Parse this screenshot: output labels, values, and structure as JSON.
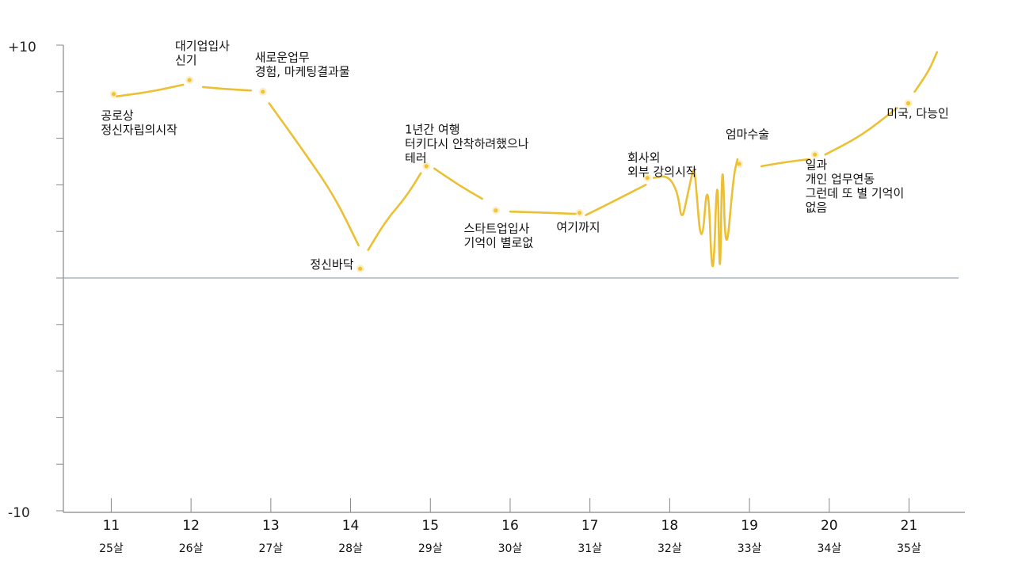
{
  "chart_data": {
    "type": "line",
    "title": "",
    "xlabel": "",
    "ylabel": "",
    "ylim": [
      -10,
      10
    ],
    "y_top_label": "+10",
    "y_bottom_label": "-10",
    "xlim": [
      10.4,
      21.7
    ],
    "x_ticks": [
      {
        "value": 11,
        "label": "11",
        "age": "25살"
      },
      {
        "value": 12,
        "label": "12",
        "age": "26살"
      },
      {
        "value": 13,
        "label": "13",
        "age": "27살"
      },
      {
        "value": 14,
        "label": "14",
        "age": "28살"
      },
      {
        "value": 15,
        "label": "15",
        "age": "29살"
      },
      {
        "value": 16,
        "label": "16",
        "age": "30살"
      },
      {
        "value": 17,
        "label": "17",
        "age": "31살"
      },
      {
        "value": 18,
        "label": "18",
        "age": "32살"
      },
      {
        "value": 19,
        "label": "19",
        "age": "33살"
      },
      {
        "value": 20,
        "label": "20",
        "age": "34살"
      },
      {
        "value": 21,
        "label": "21",
        "age": "35살"
      }
    ],
    "line_color": "#EBC034",
    "point_color": "#F4C430",
    "axis_color": "#888888",
    "zero_line_color": "#9AA5B4",
    "points": [
      {
        "x": 11.03,
        "y": 7.9
      },
      {
        "x": 11.98,
        "y": 8.5
      },
      {
        "x": 12.9,
        "y": 8.0
      },
      {
        "x": 14.12,
        "y": 0.4
      },
      {
        "x": 14.95,
        "y": 4.8
      },
      {
        "x": 15.82,
        "y": 2.9
      },
      {
        "x": 16.87,
        "y": 2.8
      },
      {
        "x": 17.72,
        "y": 4.3
      },
      {
        "x": 18.87,
        "y": 4.9
      },
      {
        "x": 19.82,
        "y": 5.3
      },
      {
        "x": 20.99,
        "y": 7.5
      }
    ],
    "segments": [
      [
        [
          11.07,
          7.8
        ],
        [
          11.5,
          8.0
        ],
        [
          11.9,
          8.3
        ]
      ],
      [
        [
          12.15,
          8.2
        ],
        [
          12.5,
          8.1
        ],
        [
          12.75,
          8.05
        ]
      ],
      [
        [
          12.98,
          7.5
        ],
        [
          13.4,
          5.5
        ],
        [
          13.8,
          3.5
        ],
        [
          14.1,
          1.4
        ]
      ],
      [
        [
          14.22,
          1.2
        ],
        [
          14.45,
          2.5
        ],
        [
          14.7,
          3.5
        ],
        [
          14.88,
          4.5
        ]
      ],
      [
        [
          15.05,
          4.7
        ],
        [
          15.35,
          4.0
        ],
        [
          15.65,
          3.4
        ]
      ],
      [
        [
          16.0,
          2.85
        ],
        [
          16.5,
          2.8
        ],
        [
          16.82,
          2.75
        ]
      ],
      [
        [
          16.95,
          2.7
        ],
        [
          17.3,
          3.3
        ],
        [
          17.7,
          4.0
        ]
      ],
      [
        [
          17.8,
          4.3
        ],
        [
          17.98,
          4.4
        ],
        [
          18.1,
          3.7
        ],
        [
          18.15,
          2.4
        ],
        [
          18.22,
          3.5
        ],
        [
          18.3,
          4.8
        ],
        [
          18.32,
          4.4
        ],
        [
          18.4,
          1.0
        ],
        [
          18.48,
          4.7
        ],
        [
          18.54,
          -1.0
        ],
        [
          18.6,
          5.4
        ],
        [
          18.63,
          -1.1
        ],
        [
          18.66,
          6.0
        ],
        [
          18.7,
          0.5
        ],
        [
          18.8,
          4.4
        ],
        [
          18.85,
          5.1
        ]
      ],
      [
        [
          19.15,
          4.8
        ],
        [
          19.5,
          5.0
        ],
        [
          19.75,
          5.1
        ]
      ],
      [
        [
          19.95,
          5.3
        ],
        [
          20.4,
          6.1
        ],
        [
          20.85,
          7.3
        ]
      ],
      [
        [
          21.07,
          8.0
        ],
        [
          21.25,
          8.9
        ],
        [
          21.35,
          9.7
        ]
      ]
    ],
    "annotations": [
      {
        "lines": [
          "공로상",
          "정신자립의시작"
        ],
        "x": 10.87,
        "y": 6.8,
        "anchor": "start"
      },
      {
        "lines": [
          "대기업입사",
          "신기"
        ],
        "x": 11.8,
        "y": 9.8,
        "anchor": "start"
      },
      {
        "lines": [
          "새로운업무",
          "경험, 마케팅결과물"
        ],
        "x": 12.8,
        "y": 9.3,
        "anchor": "start"
      },
      {
        "lines": [
          "정신바닥"
        ],
        "x": 14.04,
        "y": 0.4,
        "anchor": "end"
      },
      {
        "lines": [
          "1년간 여행",
          "터키다시 안착하려했으나",
          "테러"
        ],
        "x": 14.68,
        "y": 6.2,
        "anchor": "start"
      },
      {
        "lines": [
          "스타트업입사",
          "기억이 별로없"
        ],
        "x": 15.42,
        "y": 1.95,
        "anchor": "start"
      },
      {
        "lines": [
          "여기까지"
        ],
        "x": 16.58,
        "y": 2.0,
        "anchor": "start"
      },
      {
        "lines": [
          "회사외",
          "외부 강의시작"
        ],
        "x": 17.47,
        "y": 5.0,
        "anchor": "start"
      },
      {
        "lines": [
          "엄마수술"
        ],
        "x": 18.7,
        "y": 6.0,
        "anchor": "start"
      },
      {
        "lines": [
          "일과",
          "개인 업무연동",
          "그런데 또 별 기억이",
          "없음"
        ],
        "x": 19.7,
        "y": 4.7,
        "anchor": "start"
      },
      {
        "lines": [
          "미국, 다능인"
        ],
        "x": 20.72,
        "y": 6.9,
        "anchor": "start"
      }
    ]
  }
}
